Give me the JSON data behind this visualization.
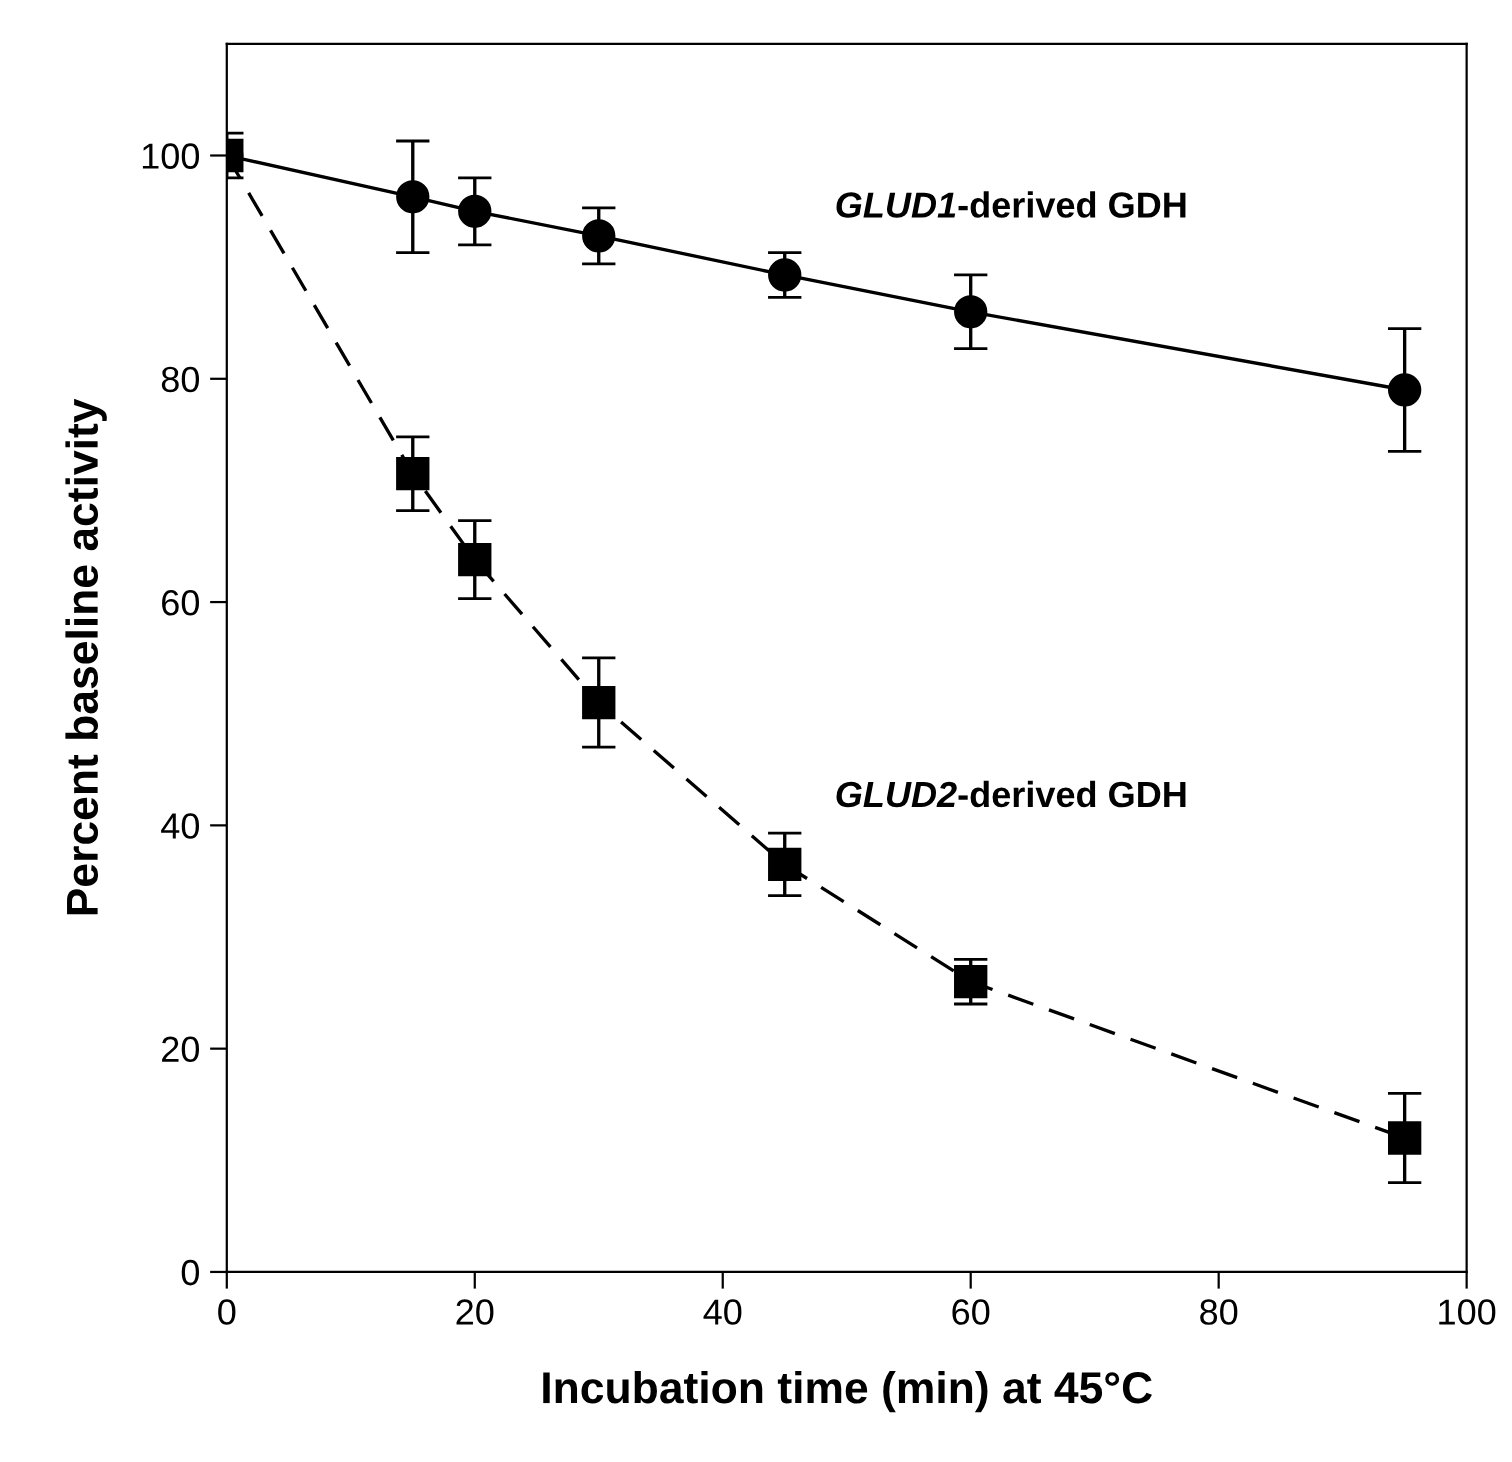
{
  "chart_data": {
    "type": "line",
    "xlabel": "Incubation time (min) at 45°C",
    "ylabel": "Percent baseline activity",
    "xlim": [
      0,
      100
    ],
    "ylim": [
      0,
      110
    ],
    "xticks": [
      0,
      20,
      40,
      60,
      80,
      100
    ],
    "yticks": [
      0,
      20,
      40,
      60,
      80,
      100
    ],
    "grid": false,
    "legend": false,
    "x": [
      0,
      15,
      20,
      30,
      45,
      60,
      95
    ],
    "series": [
      {
        "color": "#000000",
        "marker": "circle",
        "line_style": "solid",
        "values": [
          100,
          96.3,
          95,
          92.8,
          89.3,
          86,
          79
        ],
        "errors": [
          null,
          5,
          3,
          2.5,
          2,
          3.3,
          5.5
        ]
      },
      {
        "color": "#000000",
        "marker": "square",
        "line_style": "dashed",
        "values": [
          100,
          71.5,
          63.8,
          51,
          36.5,
          26,
          12
        ],
        "errors": [
          2,
          3.3,
          3.5,
          4,
          2.8,
          2,
          4
        ]
      }
    ],
    "annotations": [
      "GLUD1-derived GDH",
      "GLUD2-derived GDH"
    ]
  }
}
